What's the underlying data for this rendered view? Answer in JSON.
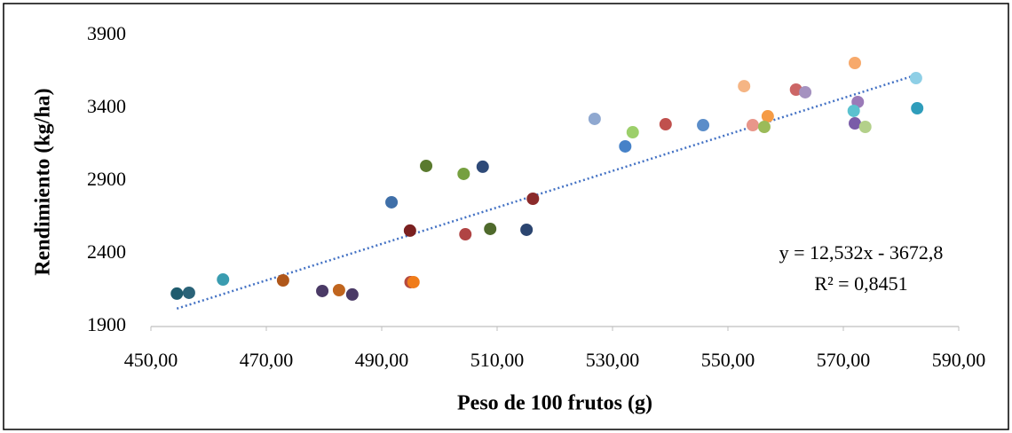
{
  "chart_data": {
    "type": "scatter",
    "x_label": "Peso de 100 frutos (g)",
    "y_label": "Rendimiento (kg/ha)",
    "x": [
      454.5,
      456.6,
      462.5,
      472.9,
      479.7,
      482.6,
      484.9,
      491.7,
      494.9,
      495.0,
      495.5,
      497.7,
      504.2,
      504.5,
      507.5,
      508.8,
      515.1,
      516.2,
      526.9,
      532.2,
      533.5,
      539.2,
      545.7,
      552.8,
      554.3,
      556.9,
      556.3,
      561.8,
      563.4,
      572.0,
      572.5,
      571.8,
      572.0,
      573.8,
      582.6,
      582.8
    ],
    "values": [
      2126,
      2132,
      2223,
      2217,
      2144,
      2150,
      2120,
      2754,
      2559,
      2205,
      2205,
      3004,
      2949,
      2534,
      2998,
      2571,
      2565,
      2778,
      3327,
      3138,
      3235,
      3290,
      3284,
      3552,
      3284,
      3345,
      3272,
      3528,
      3510,
      3711,
      3443,
      3382,
      3296,
      3272,
      3607,
      3400
    ],
    "colors": [
      "#1f5c6e",
      "#2a6378",
      "#3a9cb0",
      "#b0571a",
      "#4a3a66",
      "#c0651e",
      "#4a3a66",
      "#3f6fa8",
      "#7a2020",
      "#b5493f",
      "#f07c1a",
      "#5a7a2e",
      "#76a040",
      "#b04444",
      "#2e4a78",
      "#4f6a2c",
      "#2b4570",
      "#8b2a2a",
      "#8fa8d0",
      "#4682c8",
      "#9ccf6a",
      "#c0504d",
      "#5b8dc9",
      "#f5b584",
      "#e8968a",
      "#f59b45",
      "#9bbb59",
      "#cc6666",
      "#a592c0",
      "#f7a96b",
      "#9a7ab8",
      "#5bc2cf",
      "#7a5ca8",
      "#b3d08a",
      "#8ecfe6",
      "#2f9dbb"
    ],
    "xlim": [
      450,
      590
    ],
    "xticks": [
      {
        "value": 450,
        "label": "450,00"
      },
      {
        "value": 470,
        "label": "470,00"
      },
      {
        "value": 490,
        "label": "490,00"
      },
      {
        "value": 510,
        "label": "510,00"
      },
      {
        "value": 530,
        "label": "530,00"
      },
      {
        "value": 550,
        "label": "550,00"
      },
      {
        "value": 570,
        "label": "570,00"
      },
      {
        "value": 590,
        "label": "590,00"
      }
    ],
    "ylim": [
      1900,
      3900
    ],
    "yticks": [
      1900,
      2400,
      2900,
      3400,
      3900
    ],
    "grid": false,
    "trendline": {
      "slope": 12.532,
      "intercept": -3672.8,
      "color": "#4472c4",
      "equation": "y = 12,532x - 3672,8",
      "r2": "R² = 0,8451"
    }
  }
}
